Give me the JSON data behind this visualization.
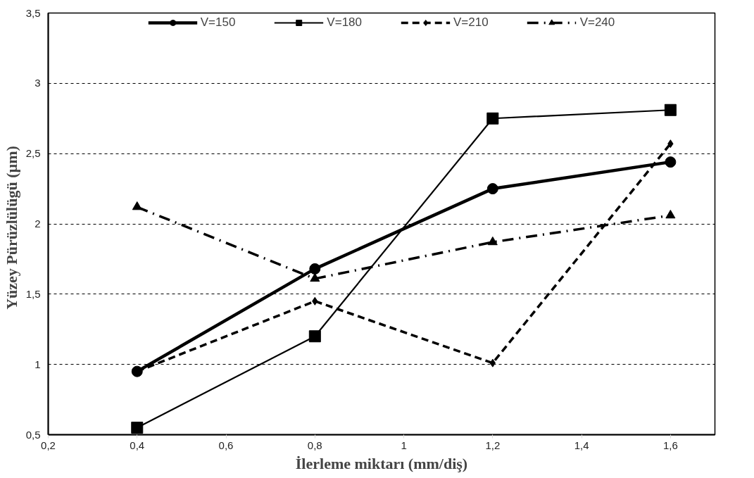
{
  "chart_data": {
    "type": "line",
    "xlabel": "İlerleme miktarı (mm/diş)",
    "ylabel": "Yüzey  Pürüzlülügü  (µm)",
    "x": [
      0.4,
      0.8,
      1.2,
      1.6
    ],
    "series": [
      {
        "name": "V=150",
        "color": "#000000",
        "marker": "circle",
        "line_style": "solid",
        "values": [
          0.95,
          1.68,
          2.25,
          2.44
        ]
      },
      {
        "name": "V=180",
        "color": "#000000",
        "marker": "square",
        "line_style": "solid",
        "values": [
          0.55,
          1.2,
          2.75,
          2.81
        ]
      },
      {
        "name": "V=210",
        "color": "#000000",
        "marker": "diamond",
        "line_style": "dashed",
        "values": [
          0.95,
          1.45,
          1.01,
          2.57
        ]
      },
      {
        "name": "V=240",
        "color": "#000000",
        "marker": "triangle",
        "line_style": "dashdot",
        "values": [
          2.12,
          1.61,
          1.87,
          2.06
        ]
      }
    ],
    "xlim": [
      0.2,
      1.7
    ],
    "ylim": [
      0.5,
      3.5
    ],
    "xticks": [
      {
        "value": 0.2,
        "label": "0,2"
      },
      {
        "value": 0.4,
        "label": "0,4"
      },
      {
        "value": 0.6,
        "label": "0,6"
      },
      {
        "value": 0.8,
        "label": "0,8"
      },
      1,
      {
        "value": 1.2,
        "label": "1,2"
      },
      {
        "value": 1.4,
        "label": "1,4"
      },
      {
        "value": 1.6,
        "label": "1,6"
      }
    ],
    "yticks": [
      {
        "value": 0.5,
        "label": "0,5"
      },
      1,
      {
        "value": 1.5,
        "label": "1,5"
      },
      2,
      {
        "value": 2.5,
        "label": "2,5"
      },
      3,
      {
        "value": 3.5,
        "label": "3,5"
      }
    ],
    "grid": "y",
    "legend": "top"
  }
}
